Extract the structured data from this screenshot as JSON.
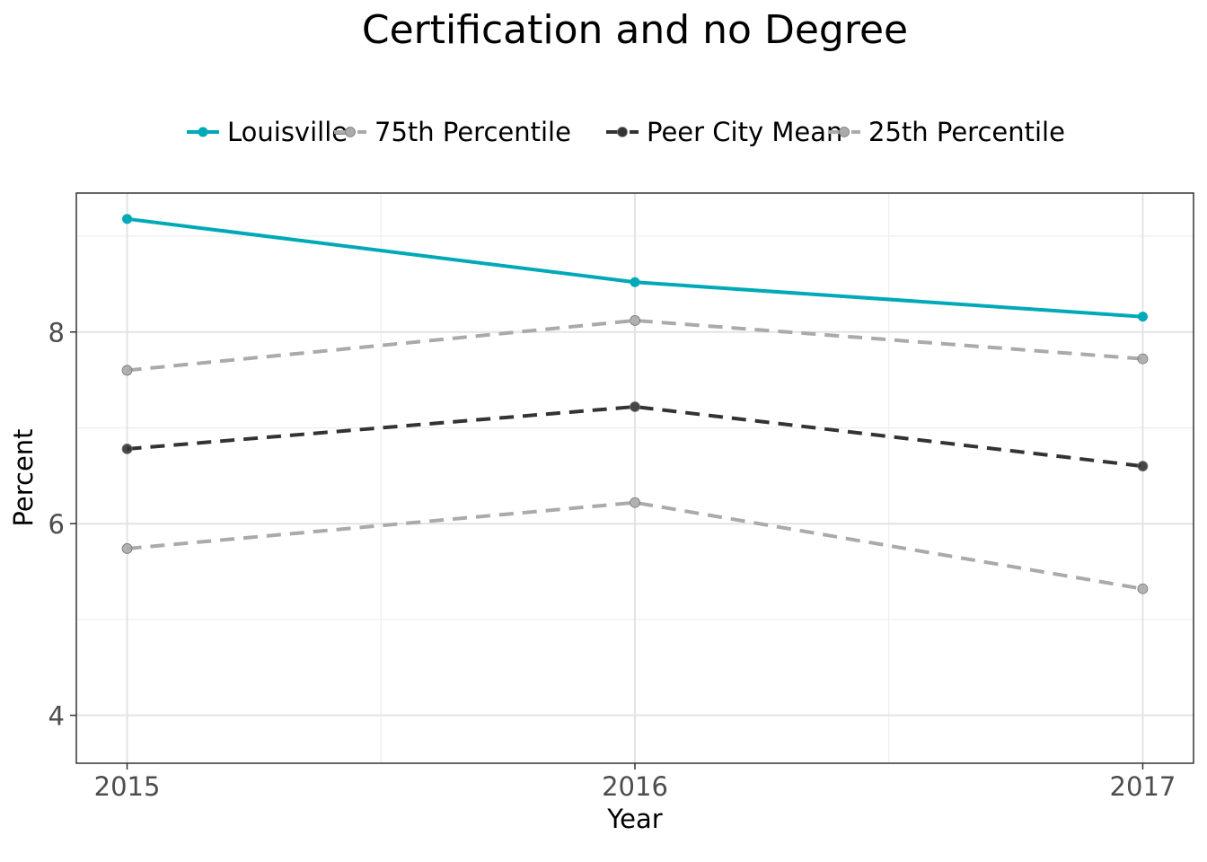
{
  "chart_data": {
    "type": "line",
    "title": "Certification and no Degree",
    "xlabel": "Year",
    "ylabel": "Percent",
    "x": [
      "2015",
      "2016",
      "2017"
    ],
    "xlim": [
      2014.9,
      2017.1
    ],
    "ylim": [
      3.5,
      9.45
    ],
    "yticks": [
      "4",
      "6",
      "8"
    ],
    "grid": true,
    "legend_position": "top",
    "series": [
      {
        "name": "Louisville",
        "values": [
          9.18,
          8.52,
          8.16
        ],
        "color": "#00a9b7",
        "style": "solid"
      },
      {
        "name": "75th Percentile",
        "values": [
          7.6,
          8.12,
          7.72
        ],
        "color": "#aaaaaa",
        "style": "dashed"
      },
      {
        "name": "Peer City Mean",
        "values": [
          6.78,
          7.22,
          6.6
        ],
        "color": "#333333",
        "style": "dashed"
      },
      {
        "name": "25th Percentile",
        "values": [
          5.74,
          6.22,
          5.32
        ],
        "color": "#aaaaaa",
        "style": "dashed"
      }
    ]
  }
}
